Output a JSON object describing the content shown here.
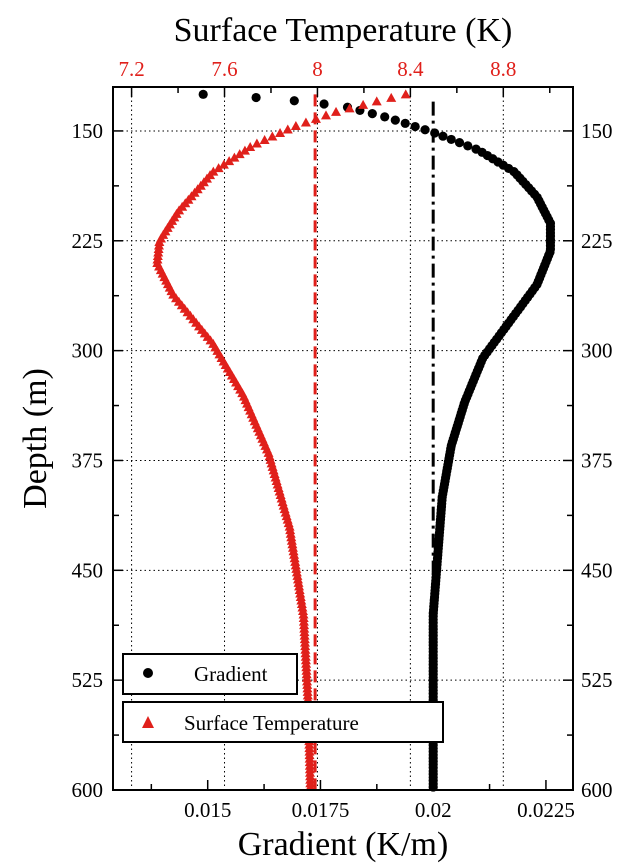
{
  "chart_data": {
    "type": "scatter",
    "title": "",
    "xlabel": "Gradient (K/m)",
    "x2label": "Surface Temperature (K)",
    "ylabel": "Depth (m)",
    "ylim": [
      600,
      120
    ],
    "y_inverted": true,
    "xlim": [
      0.0129,
      0.0231
    ],
    "x2lim": [
      7.12,
      9.1
    ],
    "grid": true,
    "grid_style": "dotted",
    "legend_position": "bottom-left",
    "x_ticks": [
      "0.015",
      "0.0175",
      "0.02",
      "0.0225"
    ],
    "x2_ticks": [
      "7.2",
      "7.6",
      "8",
      "8.4",
      "8.8"
    ],
    "y_ticks": [
      "150",
      "225",
      "300",
      "375",
      "450",
      "525",
      "600"
    ],
    "colors": {
      "gradient": "#000000",
      "surface_temperature": "#e0201b"
    },
    "series": [
      {
        "name": "Gradient",
        "axis": "bottom",
        "marker": "circle",
        "color": "#000000",
        "points": [
          [
            0.0149,
            125
          ],
          [
            0.0165,
            128
          ],
          [
            0.018,
            133
          ],
          [
            0.019,
            141
          ],
          [
            0.02,
            151
          ],
          [
            0.021,
            163
          ],
          [
            0.0218,
            178
          ],
          [
            0.0223,
            195
          ],
          [
            0.0226,
            213
          ],
          [
            0.0226,
            232
          ],
          [
            0.0223,
            255
          ],
          [
            0.0217,
            280
          ],
          [
            0.0211,
            305
          ],
          [
            0.0207,
            335
          ],
          [
            0.0204,
            365
          ],
          [
            0.0202,
            400
          ],
          [
            0.0201,
            440
          ],
          [
            0.02,
            480
          ],
          [
            0.02,
            520
          ],
          [
            0.02,
            560
          ],
          [
            0.02,
            600
          ]
        ]
      },
      {
        "name": "Surface Temperature",
        "axis": "top",
        "marker": "triangle",
        "color": "#e0201b",
        "points": [
          [
            8.38,
            125
          ],
          [
            8.25,
            130
          ],
          [
            8.08,
            137
          ],
          [
            7.9,
            147
          ],
          [
            7.72,
            160
          ],
          [
            7.55,
            178
          ],
          [
            7.4,
            205
          ],
          [
            7.32,
            225
          ],
          [
            7.31,
            240
          ],
          [
            7.38,
            262
          ],
          [
            7.55,
            295
          ],
          [
            7.68,
            330
          ],
          [
            7.79,
            370
          ],
          [
            7.88,
            420
          ],
          [
            7.94,
            480
          ],
          [
            7.96,
            540
          ],
          [
            7.97,
            600
          ]
        ]
      },
      {
        "name": "",
        "axis": "bottom",
        "style": "dashdot-line",
        "color": "#000000",
        "x": 0.02,
        "y_range": [
          130,
          600
        ]
      },
      {
        "name": "",
        "axis": "top",
        "style": "dashed-line",
        "color": "#e0201b",
        "x": 7.99,
        "y_range": [
          125,
          600
        ]
      }
    ]
  }
}
